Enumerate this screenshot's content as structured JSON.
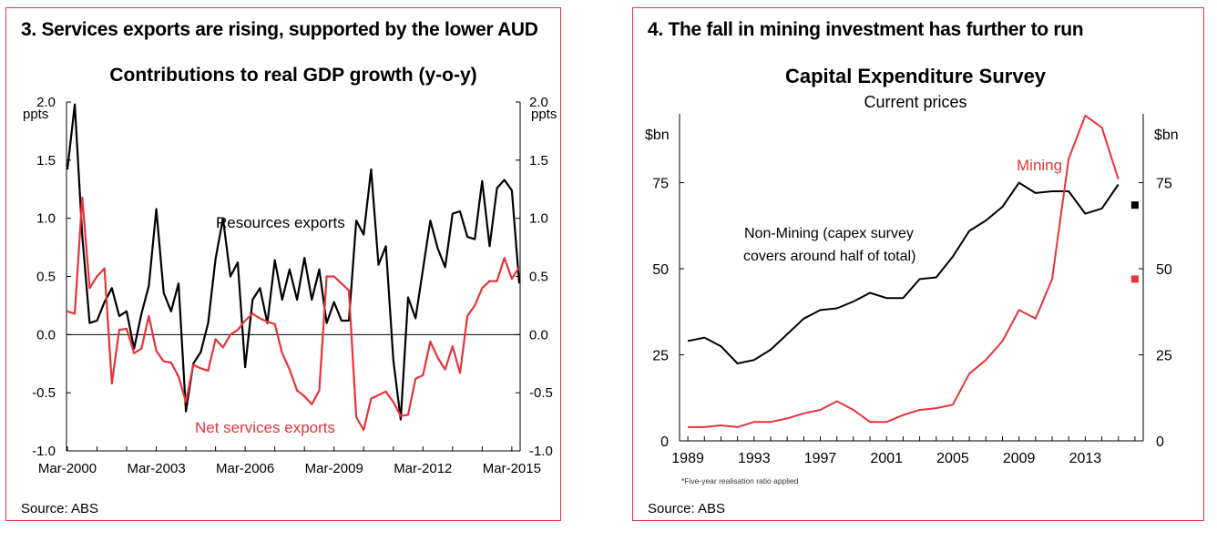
{
  "panels": [
    {
      "panel_title": "3. Services exports are rising, supported by the lower AUD",
      "source": "Source: ABS"
    },
    {
      "panel_title": "4. The fall in mining investment has further to run",
      "source": "Source: ABS"
    }
  ],
  "chart_data": [
    {
      "type": "line",
      "title": "Contributions to real GDP growth (y-o-y)",
      "ylabel_left": "ppts",
      "ylabel_right": "ppts",
      "ylim": [
        -1.0,
        2.0
      ],
      "yticks": [
        "2.0",
        "1.5",
        "1.0",
        "0.5",
        "0.0",
        "-0.5",
        "-1.0"
      ],
      "yticks_values": [
        2.0,
        1.5,
        1.0,
        0.5,
        0.0,
        -0.5,
        -1.0
      ],
      "x_start": "Mar-2000",
      "x_end": "Jun-2015",
      "xtick_labels": [
        "Mar-2000",
        "Mar-2003",
        "Mar-2006",
        "Mar-2009",
        "Mar-2012",
        "Mar-2015"
      ],
      "grid": false,
      "series": [
        {
          "name": "Resources exports",
          "color": "#000000",
          "values": [
            1.42,
            1.98,
            0.85,
            0.1,
            0.12,
            0.28,
            0.4,
            0.16,
            0.2,
            -0.12,
            0.18,
            0.42,
            1.08,
            0.36,
            0.2,
            0.44,
            -0.66,
            -0.25,
            -0.15,
            0.1,
            0.65,
            1.0,
            0.5,
            0.62,
            -0.28,
            0.3,
            0.4,
            0.1,
            0.64,
            0.3,
            0.56,
            0.3,
            0.66,
            0.3,
            0.56,
            0.1,
            0.28,
            0.12,
            0.12,
            0.98,
            0.86,
            1.42,
            0.6,
            0.76,
            -0.22,
            -0.73,
            0.32,
            0.14,
            0.56,
            0.98,
            0.74,
            0.58,
            1.04,
            1.06,
            0.84,
            0.82,
            1.32,
            0.76,
            1.26,
            1.33,
            1.24,
            0.44
          ]
        },
        {
          "name": "Net services exports",
          "color": "#e8333a",
          "values": [
            0.2,
            0.18,
            1.18,
            0.4,
            0.5,
            0.57,
            -0.42,
            0.04,
            0.05,
            -0.16,
            -0.12,
            0.16,
            -0.14,
            -0.23,
            -0.24,
            -0.36,
            -0.58,
            -0.26,
            -0.29,
            -0.31,
            -0.04,
            -0.11,
            0.0,
            0.04,
            0.12,
            0.18,
            0.14,
            0.11,
            0.09,
            -0.16,
            -0.3,
            -0.48,
            -0.53,
            -0.6,
            -0.48,
            0.5,
            0.5,
            0.44,
            0.38,
            -0.71,
            -0.82,
            -0.55,
            -0.52,
            -0.49,
            -0.58,
            -0.7,
            -0.69,
            -0.38,
            -0.35,
            -0.06,
            -0.2,
            -0.3,
            -0.1,
            -0.33,
            0.16,
            0.25,
            0.4,
            0.46,
            0.46,
            0.66,
            0.48,
            0.58
          ]
        }
      ]
    },
    {
      "type": "line",
      "title": "Capital Expenditure Survey",
      "subtitle": "Current prices",
      "ylabel_left": "$bn",
      "ylabel_right": "$bn",
      "ylim": [
        0,
        95
      ],
      "yticks": [
        "0",
        "25",
        "50",
        "75"
      ],
      "yticks_values": [
        0,
        25,
        50,
        75
      ],
      "x": [
        1989,
        1990,
        1991,
        1992,
        1993,
        1994,
        1995,
        1996,
        1997,
        1998,
        1999,
        2000,
        2001,
        2002,
        2003,
        2004,
        2005,
        2006,
        2007,
        2008,
        2009,
        2010,
        2011,
        2012,
        2013,
        2014,
        2015
      ],
      "xlim": [
        1988.5,
        2016.5
      ],
      "xticks": [
        1989,
        1993,
        1997,
        2001,
        2005,
        2009,
        2013
      ],
      "xtick_labels": [
        "1989",
        "1993",
        "1997",
        "2001",
        "2005",
        "2009",
        "2013"
      ],
      "grid": false,
      "footnote": "*Five-year realisation ratio applied",
      "series": [
        {
          "name": "Non-Mining (capex survey covers around half of total)",
          "label_lines": [
            "Non-Mining (capex survey",
            "covers around half of total)"
          ],
          "color": "#000000",
          "values": [
            29,
            30,
            27.5,
            22.5,
            23.5,
            26.5,
            31,
            35.5,
            38,
            38.5,
            40.5,
            43,
            41.5,
            41.5,
            47,
            47.5,
            53.5,
            61,
            64,
            68,
            75,
            72,
            72.5,
            72.5,
            66,
            67.5,
            74.5
          ],
          "marker": {
            "x": 2016,
            "y": 68.5
          }
        },
        {
          "name": "Mining",
          "color": "#e8333a",
          "values": [
            4,
            4,
            4.5,
            4,
            5.5,
            5.5,
            6.5,
            8,
            9,
            11.5,
            9,
            5.5,
            5.5,
            7.5,
            9,
            9.5,
            10.5,
            19.5,
            23.5,
            29,
            38,
            35.5,
            47,
            82,
            94.5,
            91,
            76
          ],
          "marker": {
            "x": 2016,
            "y": 47
          }
        }
      ]
    }
  ]
}
